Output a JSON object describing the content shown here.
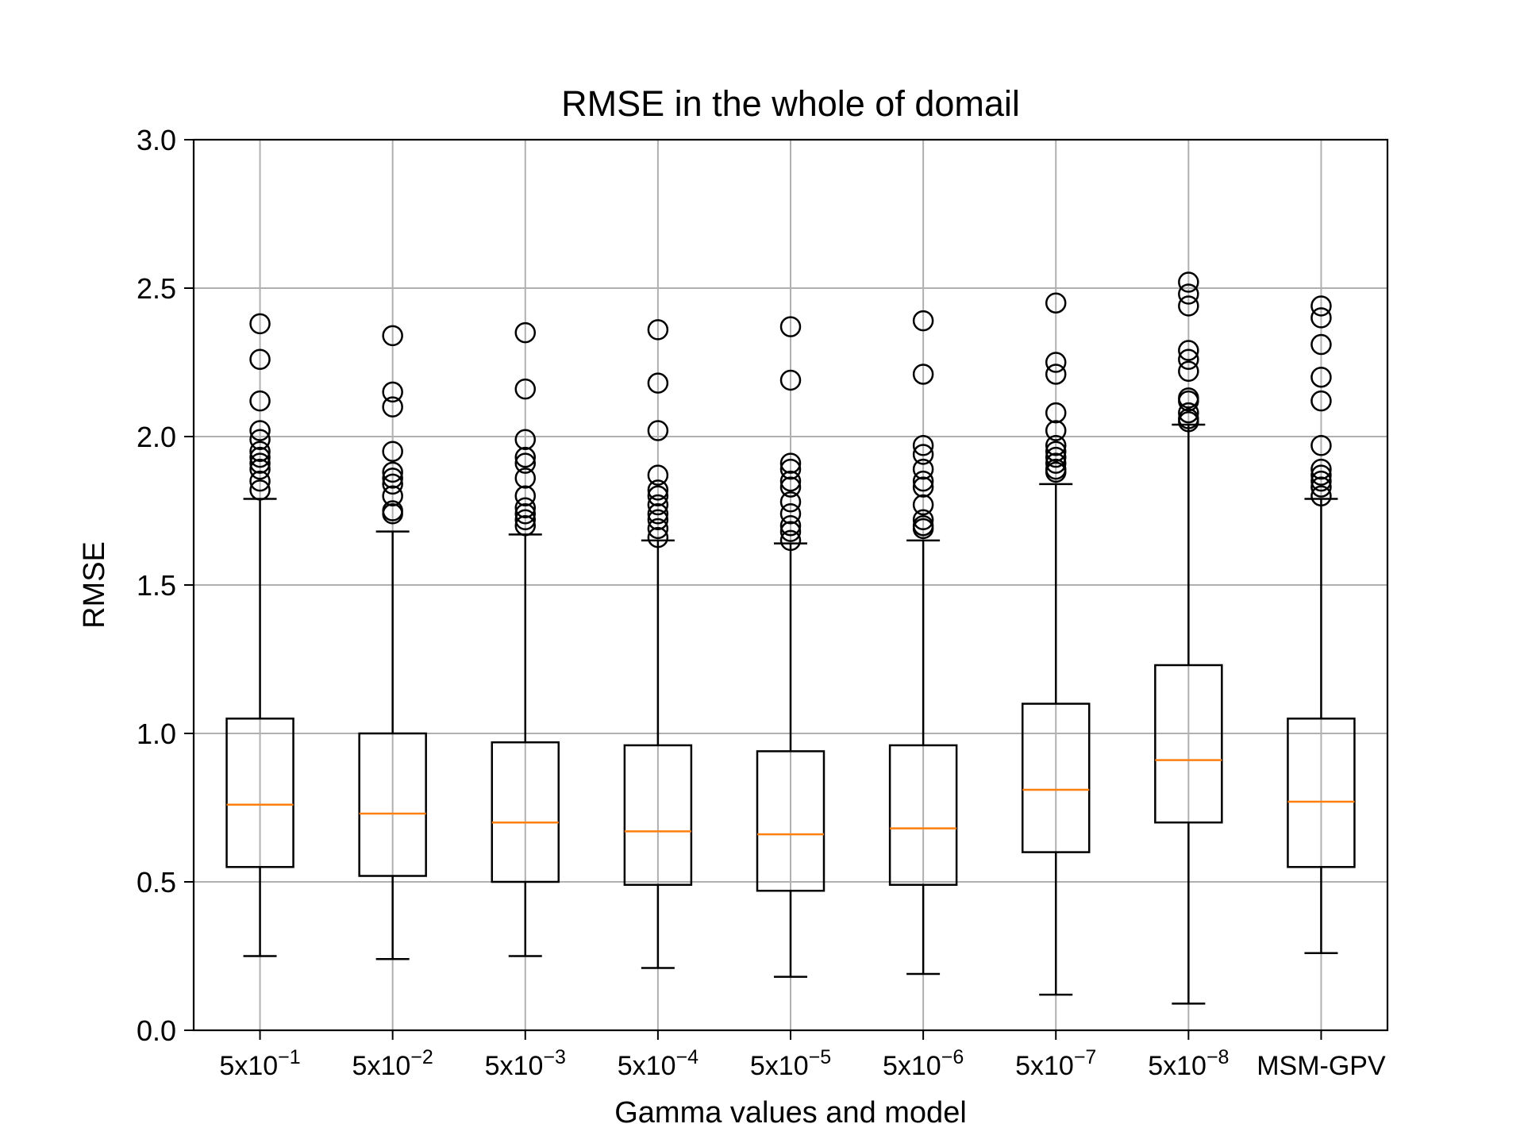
{
  "chart_data": {
    "type": "boxplot",
    "title": "RMSE in the whole of domail",
    "xlabel": "Gamma values and model",
    "ylabel": "RMSE",
    "ylim": [
      0.0,
      3.0
    ],
    "yticks": [
      "0.0",
      "0.5",
      "1.0",
      "1.5",
      "2.0",
      "2.5",
      "3.0"
    ],
    "grid": true,
    "categories": [
      {
        "base": "5x10",
        "exp": "−1"
      },
      {
        "base": "5x10",
        "exp": "−2"
      },
      {
        "base": "5x10",
        "exp": "−3"
      },
      {
        "base": "5x10",
        "exp": "−4"
      },
      {
        "base": "5x10",
        "exp": "−5"
      },
      {
        "base": "5x10",
        "exp": "−6"
      },
      {
        "base": "5x10",
        "exp": "−7"
      },
      {
        "base": "5x10",
        "exp": "−8"
      },
      {
        "base": "MSM-GPV",
        "exp": ""
      }
    ],
    "boxes": [
      {
        "whislo": 0.25,
        "q1": 0.55,
        "med": 0.76,
        "q3": 1.05,
        "whishi": 1.79,
        "fliers": [
          2.38,
          2.26,
          2.12,
          2.02,
          1.99,
          1.95,
          1.93,
          1.91,
          1.89,
          1.85,
          1.82
        ]
      },
      {
        "whislo": 0.24,
        "q1": 0.52,
        "med": 0.73,
        "q3": 1.0,
        "whishi": 1.68,
        "fliers": [
          2.34,
          2.15,
          2.1,
          1.95,
          1.88,
          1.86,
          1.84,
          1.8,
          1.75,
          1.74
        ]
      },
      {
        "whislo": 0.25,
        "q1": 0.5,
        "med": 0.7,
        "q3": 0.97,
        "whishi": 1.67,
        "fliers": [
          2.35,
          2.16,
          1.99,
          1.93,
          1.91,
          1.86,
          1.8,
          1.76,
          1.74,
          1.72,
          1.7
        ]
      },
      {
        "whislo": 0.21,
        "q1": 0.49,
        "med": 0.67,
        "q3": 0.96,
        "whishi": 1.65,
        "fliers": [
          2.36,
          2.18,
          2.02,
          1.87,
          1.82,
          1.8,
          1.77,
          1.74,
          1.72,
          1.69,
          1.66
        ]
      },
      {
        "whislo": 0.18,
        "q1": 0.47,
        "med": 0.66,
        "q3": 0.94,
        "whishi": 1.64,
        "fliers": [
          2.37,
          2.19,
          1.91,
          1.89,
          1.85,
          1.83,
          1.78,
          1.74,
          1.7,
          1.68,
          1.65
        ]
      },
      {
        "whislo": 0.19,
        "q1": 0.49,
        "med": 0.68,
        "q3": 0.96,
        "whishi": 1.65,
        "fliers": [
          2.39,
          2.21,
          1.97,
          1.94,
          1.89,
          1.85,
          1.83,
          1.77,
          1.72,
          1.7,
          1.69
        ]
      },
      {
        "whislo": 0.12,
        "q1": 0.6,
        "med": 0.81,
        "q3": 1.1,
        "whishi": 1.84,
        "fliers": [
          2.45,
          2.25,
          2.21,
          2.08,
          2.02,
          1.97,
          1.95,
          1.93,
          1.91,
          1.89,
          1.88
        ]
      },
      {
        "whislo": 0.09,
        "q1": 0.7,
        "med": 0.91,
        "q3": 1.23,
        "whishi": 2.04,
        "fliers": [
          2.52,
          2.48,
          2.44,
          2.29,
          2.26,
          2.22,
          2.13,
          2.12,
          2.08,
          2.06,
          2.05
        ]
      },
      {
        "whislo": 0.26,
        "q1": 0.55,
        "med": 0.77,
        "q3": 1.05,
        "whishi": 1.79,
        "fliers": [
          2.44,
          2.4,
          2.31,
          2.2,
          2.12,
          1.97,
          1.89,
          1.87,
          1.85,
          1.83,
          1.8
        ]
      }
    ]
  },
  "colors": {
    "median": "#ff7f0e",
    "box": "#000000",
    "grid": "#b0b0b0",
    "background": "#ffffff"
  }
}
